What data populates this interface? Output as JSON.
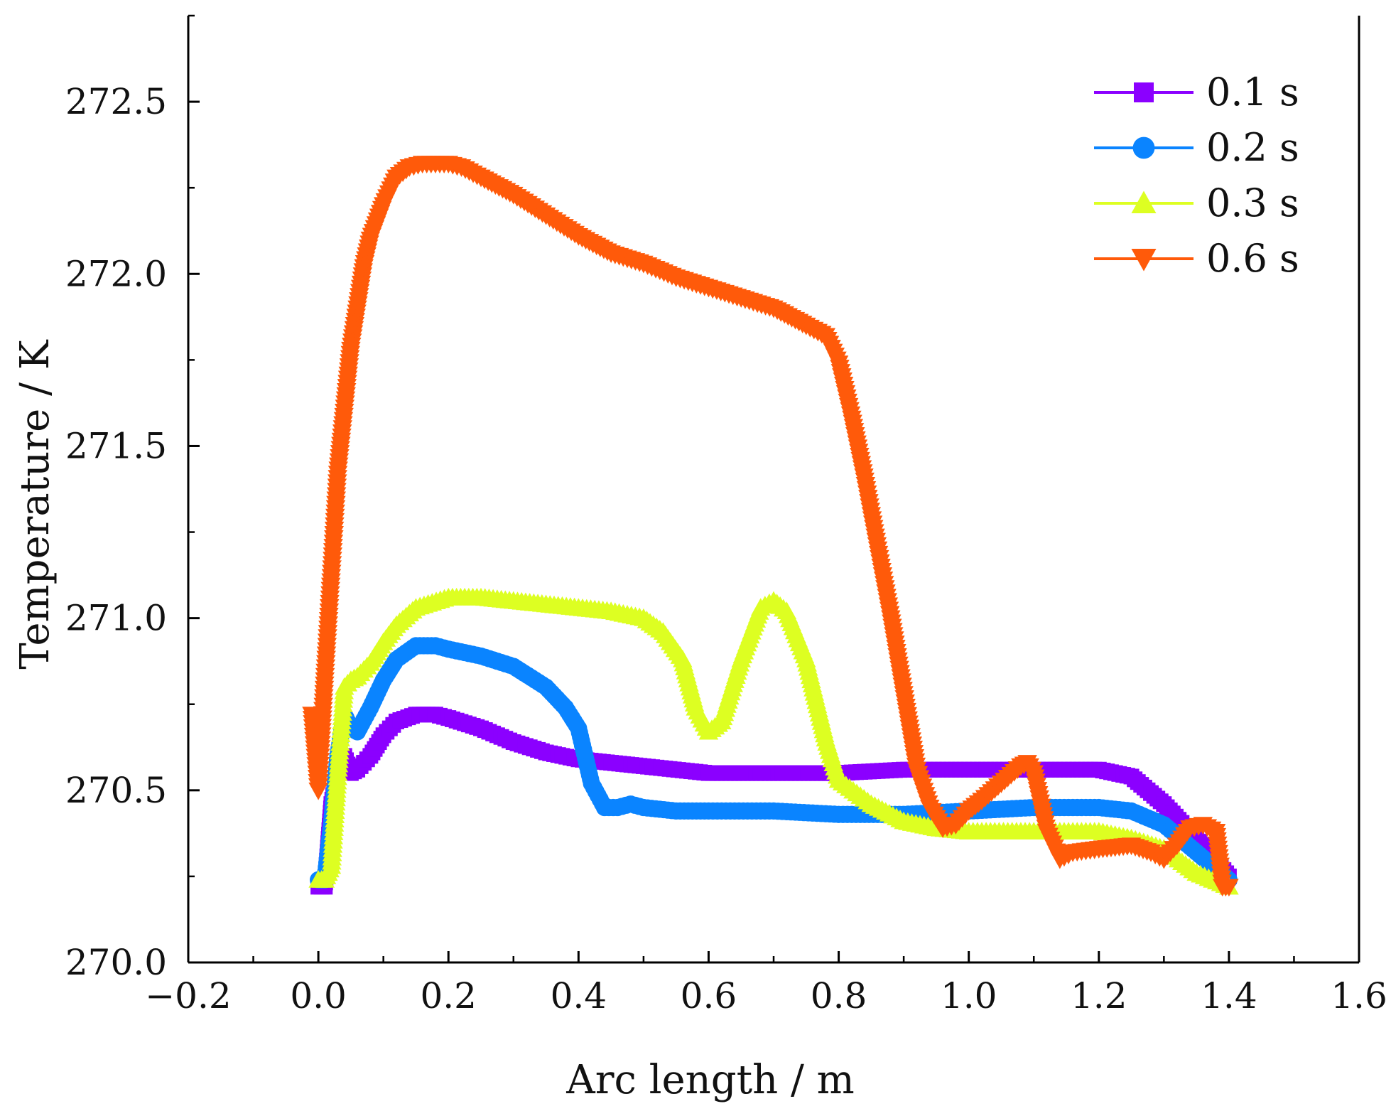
{
  "chart_data": {
    "type": "line",
    "title": "",
    "xlabel": "Arc length / m",
    "ylabel": "Temperature / K",
    "xlim": [
      -0.2,
      1.6
    ],
    "ylim": [
      270.0,
      272.75
    ],
    "xticks": [
      -0.2,
      0.0,
      0.2,
      0.4,
      0.6,
      0.8,
      1.0,
      1.2,
      1.4,
      1.6
    ],
    "xtick_labels": [
      "−0.2",
      "0.0",
      "0.2",
      "0.4",
      "0.6",
      "0.8",
      "1.0",
      "1.2",
      "1.4",
      "1.6"
    ],
    "yticks": [
      270.0,
      270.5,
      271.0,
      271.5,
      272.0,
      272.5
    ],
    "ytick_labels": [
      "270.0",
      "270.5",
      "271.0",
      "271.5",
      "272.0",
      "272.5"
    ],
    "grid": false,
    "legend_position": "top-right",
    "series": [
      {
        "name": "0.1 s",
        "color": "#8B00FF",
        "marker": "square",
        "x": [
          0.0,
          0.01,
          0.02,
          0.03,
          0.04,
          0.05,
          0.06,
          0.08,
          0.1,
          0.12,
          0.15,
          0.18,
          0.2,
          0.25,
          0.3,
          0.35,
          0.4,
          0.45,
          0.5,
          0.6,
          0.7,
          0.8,
          0.9,
          1.0,
          1.1,
          1.2,
          1.25,
          1.3,
          1.35,
          1.4
        ],
        "y": [
          270.22,
          270.22,
          270.46,
          270.55,
          270.6,
          270.55,
          270.56,
          270.6,
          270.66,
          270.7,
          270.72,
          270.72,
          270.71,
          270.68,
          270.64,
          270.61,
          270.59,
          270.58,
          270.57,
          270.55,
          270.55,
          270.55,
          270.56,
          270.56,
          270.56,
          270.56,
          270.54,
          270.46,
          270.36,
          270.25
        ]
      },
      {
        "name": "0.2 s",
        "color": "#0A84FF",
        "marker": "circle",
        "x": [
          0.0,
          0.01,
          0.02,
          0.03,
          0.04,
          0.05,
          0.06,
          0.08,
          0.1,
          0.12,
          0.15,
          0.18,
          0.2,
          0.25,
          0.3,
          0.35,
          0.38,
          0.4,
          0.42,
          0.44,
          0.46,
          0.48,
          0.5,
          0.55,
          0.6,
          0.7,
          0.8,
          0.9,
          1.0,
          1.1,
          1.2,
          1.25,
          1.3,
          1.35,
          1.4
        ],
        "y": [
          270.24,
          270.24,
          270.4,
          270.6,
          270.72,
          270.68,
          270.67,
          270.74,
          270.82,
          270.88,
          270.92,
          270.92,
          270.91,
          270.89,
          270.86,
          270.8,
          270.74,
          270.68,
          270.52,
          270.45,
          270.45,
          270.46,
          270.45,
          270.44,
          270.44,
          270.44,
          270.43,
          270.43,
          270.44,
          270.45,
          270.45,
          270.44,
          270.4,
          270.32,
          270.24
        ]
      },
      {
        "name": "0.3 s",
        "color": "#DDFF22",
        "marker": "triangle-up",
        "x": [
          0.0,
          0.01,
          0.02,
          0.03,
          0.04,
          0.05,
          0.06,
          0.08,
          0.1,
          0.12,
          0.15,
          0.2,
          0.25,
          0.3,
          0.35,
          0.4,
          0.45,
          0.5,
          0.53,
          0.56,
          0.58,
          0.6,
          0.62,
          0.65,
          0.68,
          0.7,
          0.72,
          0.75,
          0.78,
          0.8,
          0.85,
          0.9,
          0.95,
          1.0,
          1.1,
          1.2,
          1.25,
          1.3,
          1.35,
          1.4
        ],
        "y": [
          270.24,
          270.24,
          270.28,
          270.55,
          270.8,
          270.82,
          270.83,
          270.87,
          270.93,
          270.98,
          271.03,
          271.06,
          271.06,
          271.05,
          271.04,
          271.03,
          271.02,
          271.0,
          270.96,
          270.88,
          270.74,
          270.67,
          270.7,
          270.88,
          271.03,
          271.05,
          271.02,
          270.88,
          270.65,
          270.53,
          270.46,
          270.41,
          270.39,
          270.38,
          270.38,
          270.38,
          270.36,
          270.33,
          270.26,
          270.22
        ]
      },
      {
        "name": "0.6 s",
        "color": "#FF5A0A",
        "marker": "triangle-down",
        "x": [
          -0.01,
          0.0,
          0.01,
          0.02,
          0.03,
          0.04,
          0.05,
          0.06,
          0.07,
          0.08,
          0.1,
          0.12,
          0.14,
          0.16,
          0.18,
          0.2,
          0.22,
          0.25,
          0.3,
          0.35,
          0.4,
          0.45,
          0.5,
          0.55,
          0.6,
          0.65,
          0.7,
          0.75,
          0.78,
          0.8,
          0.82,
          0.84,
          0.86,
          0.88,
          0.9,
          0.92,
          0.94,
          0.96,
          0.98,
          1.0,
          1.02,
          1.05,
          1.08,
          1.09,
          1.1,
          1.12,
          1.14,
          1.16,
          1.2,
          1.25,
          1.28,
          1.3,
          1.32,
          1.34,
          1.36,
          1.38,
          1.39,
          1.4
        ],
        "y": [
          270.72,
          270.5,
          270.82,
          271.12,
          271.42,
          271.6,
          271.78,
          271.9,
          272.02,
          272.1,
          272.2,
          272.28,
          272.31,
          272.32,
          272.32,
          272.32,
          272.31,
          272.28,
          272.23,
          272.17,
          272.11,
          272.06,
          272.03,
          271.99,
          271.96,
          271.93,
          271.9,
          271.85,
          271.82,
          271.74,
          271.58,
          271.4,
          271.2,
          271.0,
          270.78,
          270.56,
          270.45,
          270.39,
          270.4,
          270.44,
          270.47,
          270.52,
          270.57,
          270.58,
          270.55,
          270.38,
          270.3,
          270.32,
          270.33,
          270.34,
          270.32,
          270.3,
          270.34,
          270.39,
          270.4,
          270.38,
          270.22,
          270.22
        ]
      }
    ]
  }
}
